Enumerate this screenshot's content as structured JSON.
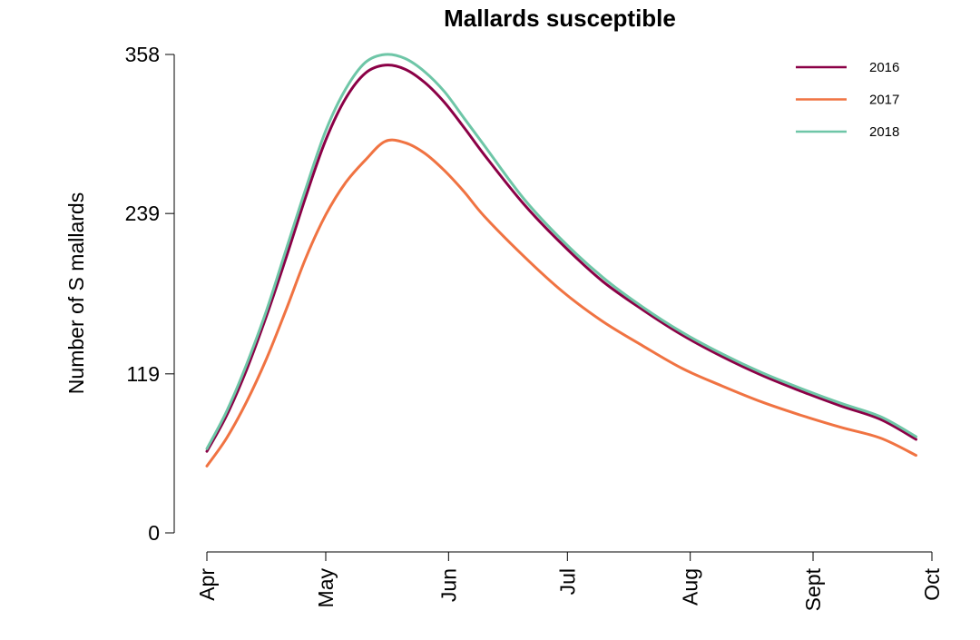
{
  "chart_data": {
    "type": "line",
    "title": "Mallards susceptible",
    "xlabel": "",
    "ylabel": "Number of S mallards",
    "x_ticks": [
      {
        "label": "Apr",
        "value": 0
      },
      {
        "label": "May",
        "value": 30
      },
      {
        "label": "Jun",
        "value": 61
      },
      {
        "label": "Jul",
        "value": 91
      },
      {
        "label": "Aug",
        "value": 122
      },
      {
        "label": "Sept",
        "value": 153
      },
      {
        "label": "Oct",
        "value": 183
      }
    ],
    "xlim": [
      0,
      183
    ],
    "y_ticks": [
      0,
      119,
      239,
      358
    ],
    "ylim": [
      0,
      358
    ],
    "grid": false,
    "legend": "top-right",
    "x": [
      0,
      5,
      10,
      15,
      20,
      25,
      30,
      35,
      40,
      45,
      50,
      55,
      60,
      65,
      70,
      80,
      90,
      100,
      110,
      120,
      130,
      140,
      150,
      160,
      170,
      179
    ],
    "series": [
      {
        "name": "2016",
        "color": "#8B0046",
        "values": [
          61,
          88,
          122,
          162,
          206,
          252,
          294,
          325,
          344,
          350,
          347,
          337,
          322,
          303,
          283,
          246,
          215,
          188,
          167,
          148,
          132,
          118,
          106,
          95,
          85,
          70
        ]
      },
      {
        "name": "2017",
        "color": "#F07342",
        "values": [
          50,
          71,
          98,
          130,
          167,
          206,
          238,
          262,
          279,
          293,
          292,
          284,
          271,
          255,
          237,
          207,
          180,
          158,
          140,
          123,
          110,
          98,
          88,
          79,
          71,
          58
        ]
      },
      {
        "name": "2018",
        "color": "#6EC6A7",
        "values": [
          63,
          91,
          126,
          166,
          212,
          258,
          301,
          332,
          352,
          358,
          355,
          345,
          330,
          310,
          290,
          250,
          218,
          191,
          169,
          150,
          134,
          120,
          108,
          97,
          87,
          72
        ]
      }
    ]
  }
}
